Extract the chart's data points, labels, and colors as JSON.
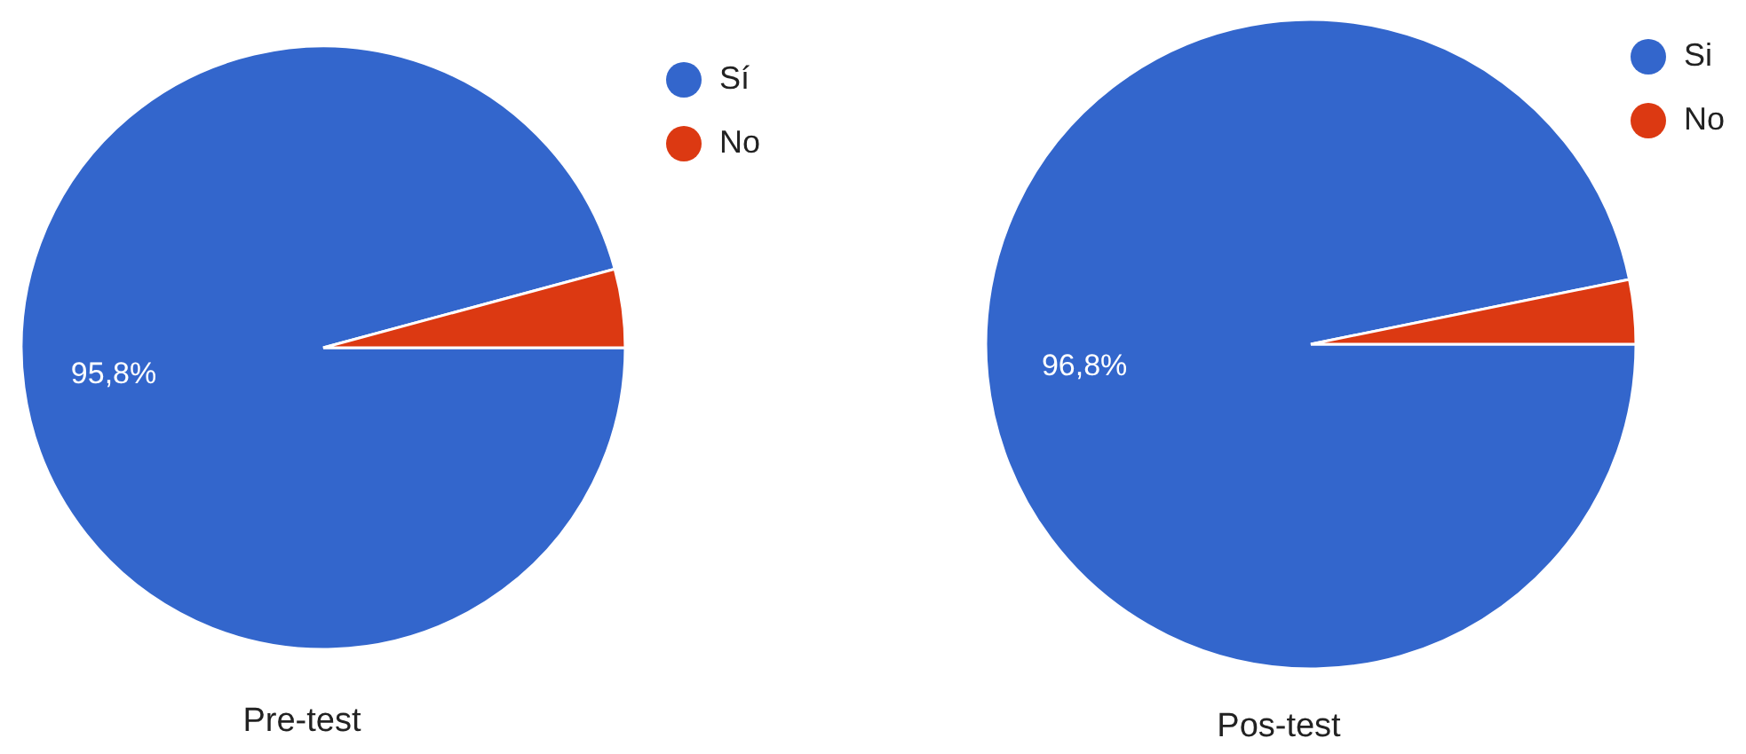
{
  "chart_data": [
    {
      "type": "pie",
      "title": "Pre-test",
      "categories": [
        "Sí",
        "No"
      ],
      "values": [
        95.8,
        4.2
      ],
      "colors": [
        "#3366cc",
        "#dc3912"
      ],
      "value_labels": [
        "95,8%",
        null
      ],
      "legend": "top right"
    },
    {
      "type": "pie",
      "title": "Pos-test",
      "categories": [
        "Si",
        "No"
      ],
      "values": [
        96.8,
        3.2
      ],
      "colors": [
        "#3366cc",
        "#dc3912"
      ],
      "value_labels": [
        "96,8%",
        null
      ],
      "legend": "top right"
    }
  ]
}
